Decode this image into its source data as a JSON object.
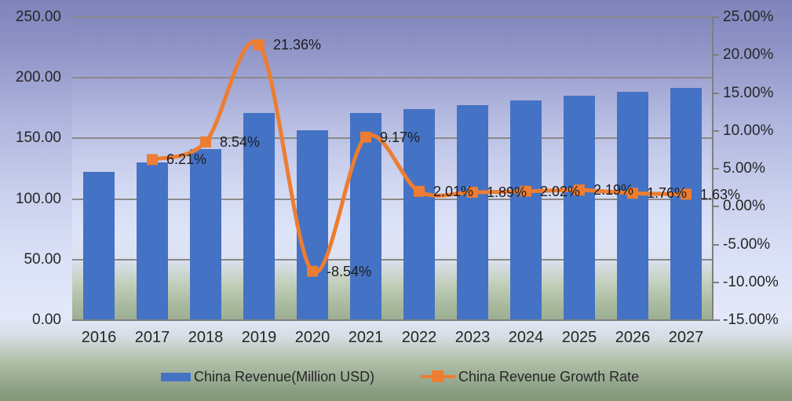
{
  "chart_data": {
    "type": "combo-bar-line",
    "title": "",
    "categories": [
      "2016",
      "2017",
      "2018",
      "2019",
      "2020",
      "2021",
      "2022",
      "2023",
      "2024",
      "2025",
      "2026",
      "2027"
    ],
    "series": [
      {
        "name": "China Revenue(Million USD)",
        "type": "bar",
        "axis": "left",
        "color": "#4472C4",
        "values": [
          122.3,
          129.9,
          141.0,
          171.1,
          156.5,
          170.9,
          174.3,
          177.6,
          181.2,
          185.2,
          188.4,
          191.5
        ]
      },
      {
        "name": "China Revenue Growth Rate",
        "type": "line",
        "axis": "right",
        "color": "#ED7D31",
        "smooth": true,
        "values": [
          null,
          6.21,
          8.54,
          21.36,
          -8.54,
          9.17,
          2.01,
          1.89,
          2.02,
          2.19,
          1.76,
          1.63
        ],
        "point_labels": [
          null,
          "6.21%",
          "8.54%",
          "21.36%",
          "-8.54%",
          "9.17%",
          "2.01%",
          "1.89%",
          "2.02%",
          "2.19%",
          "1.76%",
          "1.63%"
        ]
      }
    ],
    "left_axis": {
      "min": 0,
      "max": 250,
      "tick_labels": [
        "250.00",
        "200.00",
        "150.00",
        "100.00",
        "50.00",
        "0.00"
      ]
    },
    "right_axis": {
      "min": -15,
      "max": 25,
      "tick_labels": [
        "25.00%",
        "20.00%",
        "15.00%",
        "10.00%",
        "5.00%",
        "0.00%",
        "-5.00%",
        "-10.00%",
        "-15.00%"
      ]
    },
    "grid": true,
    "legend_position": "bottom"
  },
  "colors": {
    "bar": "#4472C4",
    "line": "#ED7D31",
    "gridline": "#8a8a8a",
    "axis": "#7f7f7f",
    "text": "#262626"
  }
}
